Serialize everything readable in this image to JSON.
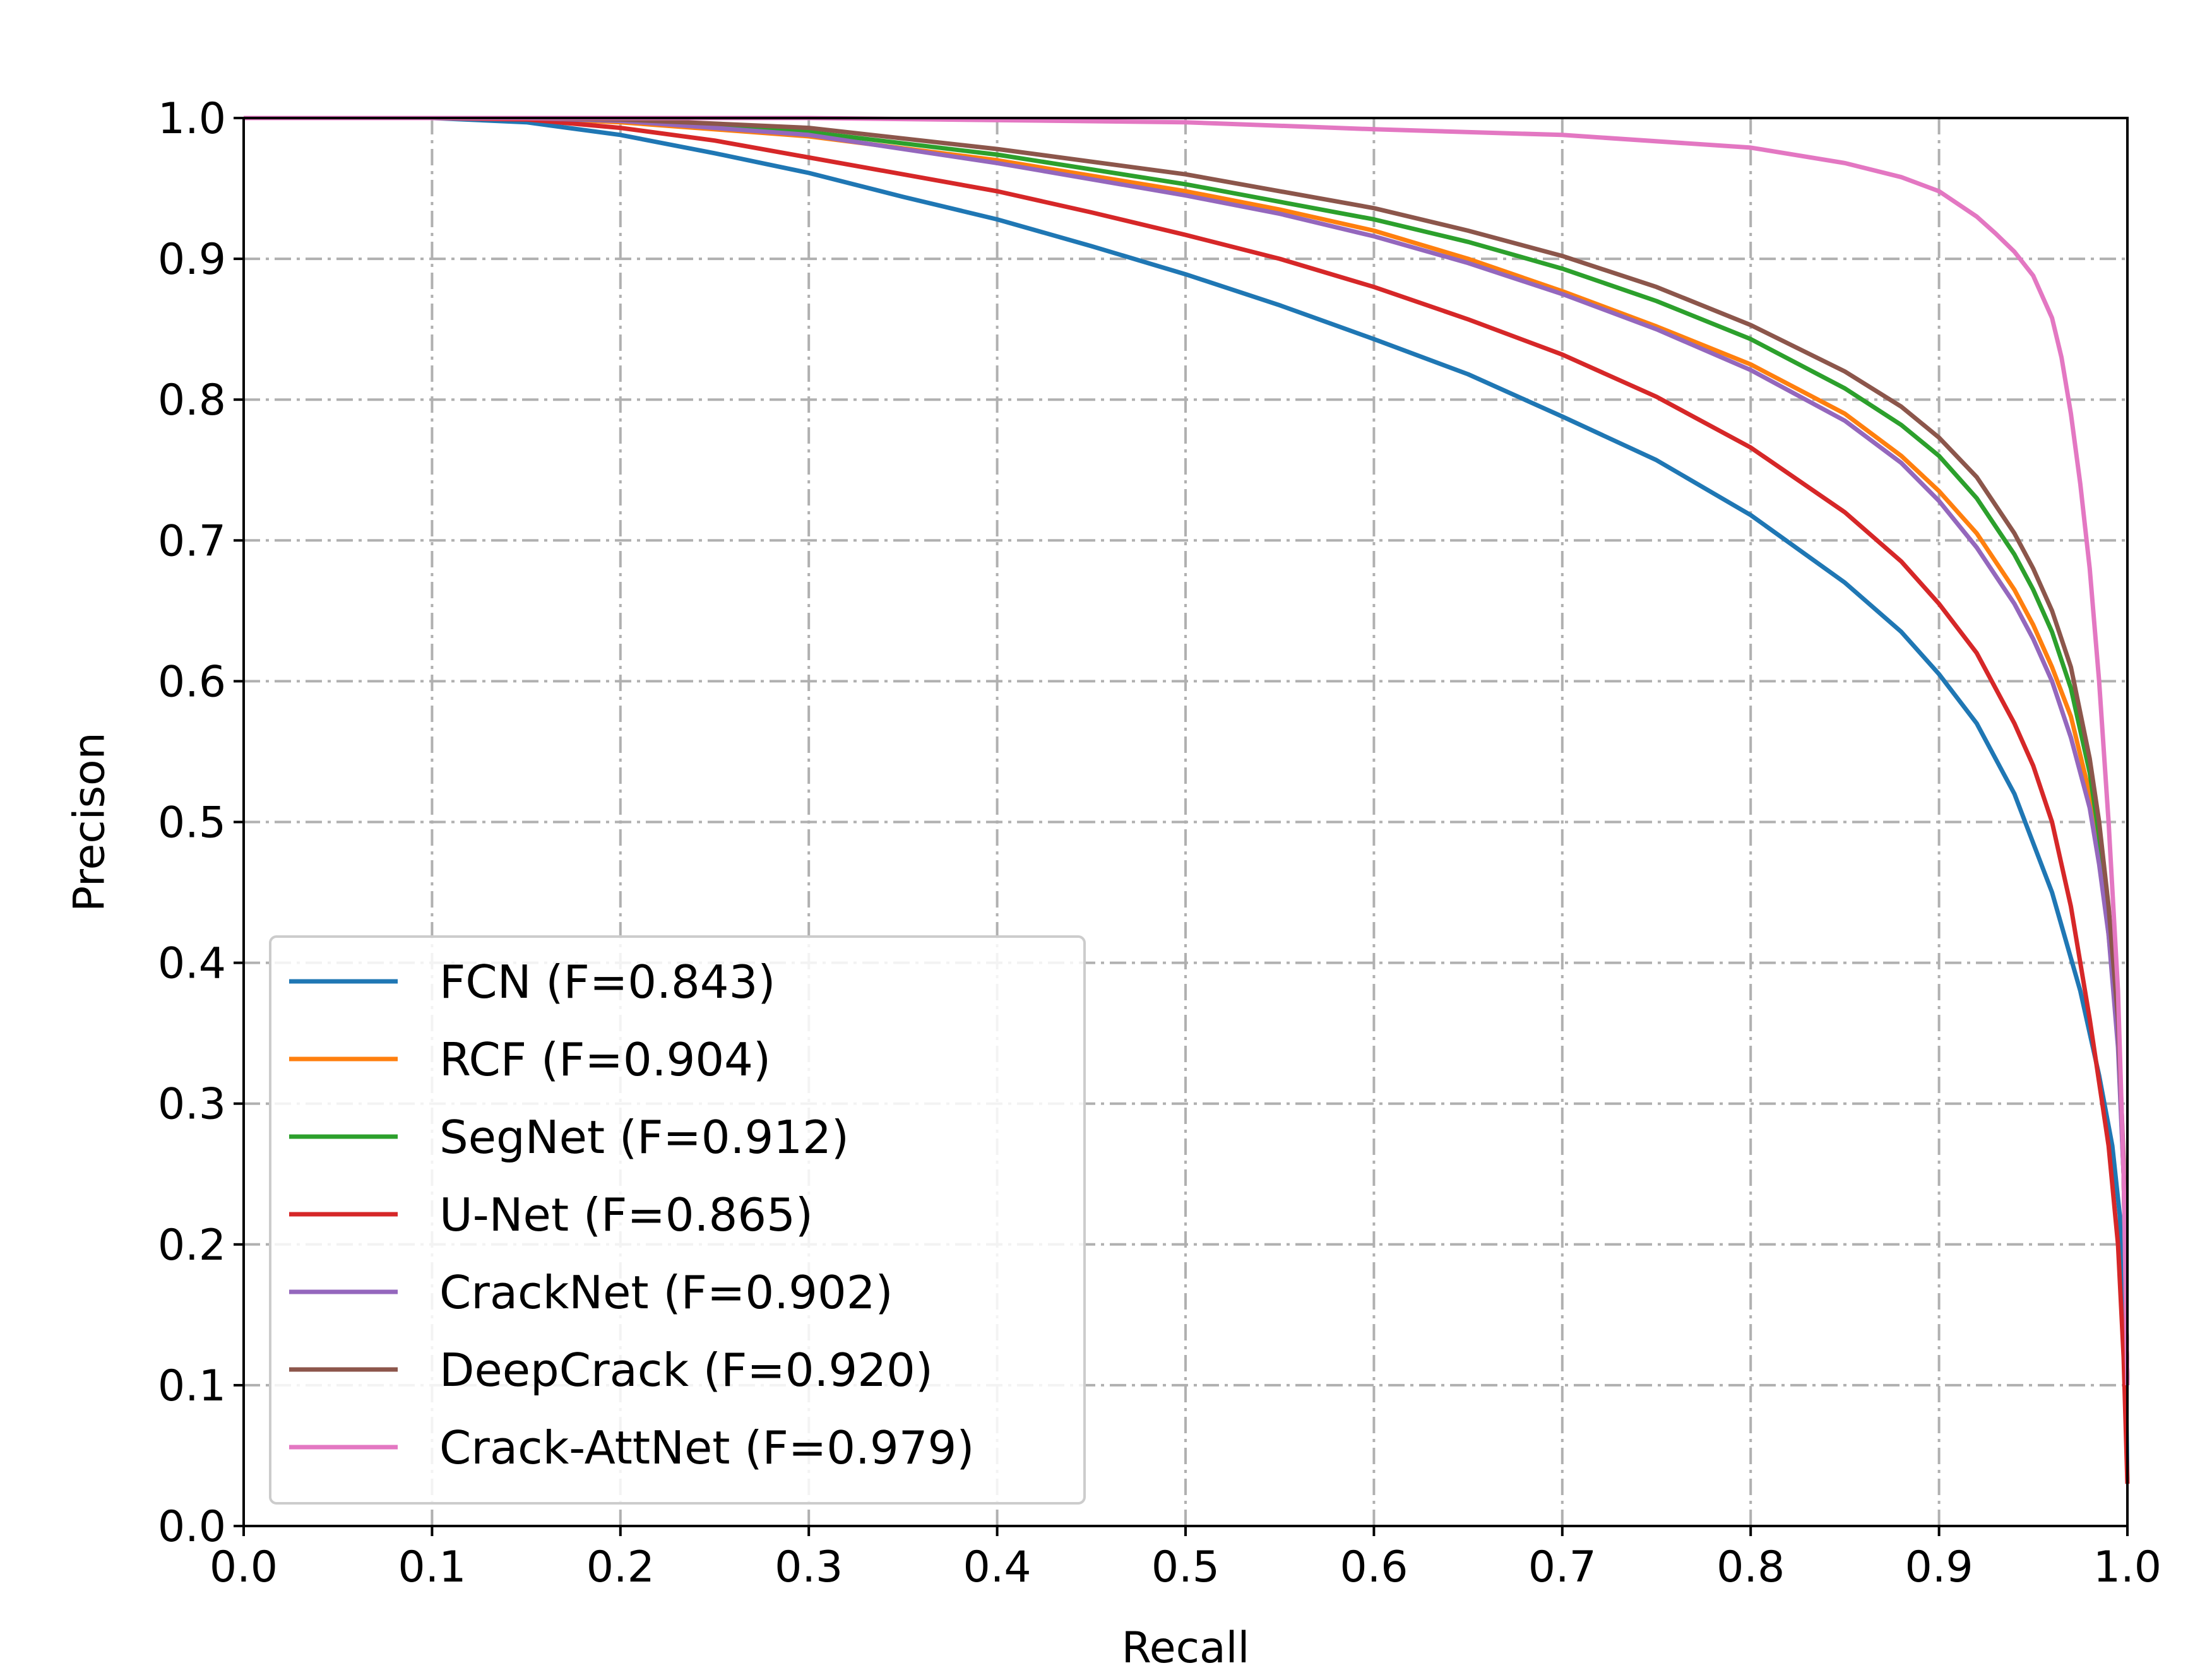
{
  "chart_data": {
    "type": "line",
    "title": "",
    "xlabel": "Recall",
    "ylabel": "Precison",
    "xlim": [
      0.0,
      1.0
    ],
    "ylim": [
      0.0,
      1.0
    ],
    "x_ticks": [
      "0.0",
      "0.1",
      "0.2",
      "0.3",
      "0.4",
      "0.5",
      "0.6",
      "0.7",
      "0.8",
      "0.9",
      "1.0"
    ],
    "y_ticks": [
      "0.0",
      "0.1",
      "0.2",
      "0.3",
      "0.4",
      "0.5",
      "0.6",
      "0.7",
      "0.8",
      "0.9",
      "1.0"
    ],
    "grid": true,
    "legend_position": "lower-left",
    "series": [
      {
        "name": "FCN (F=0.843)",
        "color": "#1f77b4",
        "points": [
          [
            0,
            1.0
          ],
          [
            0.1,
            1.0
          ],
          [
            0.15,
            0.997
          ],
          [
            0.2,
            0.988
          ],
          [
            0.25,
            0.975
          ],
          [
            0.3,
            0.961
          ],
          [
            0.35,
            0.944
          ],
          [
            0.4,
            0.928
          ],
          [
            0.45,
            0.909
          ],
          [
            0.5,
            0.889
          ],
          [
            0.55,
            0.867
          ],
          [
            0.6,
            0.843
          ],
          [
            0.65,
            0.818
          ],
          [
            0.7,
            0.788
          ],
          [
            0.75,
            0.757
          ],
          [
            0.8,
            0.718
          ],
          [
            0.85,
            0.67
          ],
          [
            0.88,
            0.635
          ],
          [
            0.9,
            0.605
          ],
          [
            0.92,
            0.57
          ],
          [
            0.94,
            0.52
          ],
          [
            0.96,
            0.45
          ],
          [
            0.975,
            0.38
          ],
          [
            0.985,
            0.32
          ],
          [
            0.992,
            0.27
          ],
          [
            0.996,
            0.22
          ],
          [
            0.999,
            0.12
          ],
          [
            1.0,
            0.03
          ]
        ]
      },
      {
        "name": "RCF (F=0.904)",
        "color": "#ff7f0e",
        "points": [
          [
            0,
            1.0
          ],
          [
            0.15,
            1.0
          ],
          [
            0.2,
            0.997
          ],
          [
            0.3,
            0.987
          ],
          [
            0.4,
            0.97
          ],
          [
            0.5,
            0.948
          ],
          [
            0.55,
            0.935
          ],
          [
            0.6,
            0.92
          ],
          [
            0.65,
            0.9
          ],
          [
            0.7,
            0.877
          ],
          [
            0.75,
            0.852
          ],
          [
            0.8,
            0.825
          ],
          [
            0.85,
            0.79
          ],
          [
            0.88,
            0.76
          ],
          [
            0.9,
            0.735
          ],
          [
            0.92,
            0.705
          ],
          [
            0.94,
            0.665
          ],
          [
            0.95,
            0.64
          ],
          [
            0.96,
            0.61
          ],
          [
            0.97,
            0.575
          ],
          [
            0.98,
            0.52
          ],
          [
            0.985,
            0.48
          ],
          [
            0.99,
            0.42
          ],
          [
            0.995,
            0.35
          ],
          [
            0.998,
            0.25
          ],
          [
            1.0,
            0.1
          ]
        ]
      },
      {
        "name": "SegNet (F=0.912)",
        "color": "#2ca02c",
        "points": [
          [
            0,
            1.0
          ],
          [
            0.15,
            1.0
          ],
          [
            0.2,
            0.998
          ],
          [
            0.3,
            0.99
          ],
          [
            0.4,
            0.974
          ],
          [
            0.5,
            0.953
          ],
          [
            0.6,
            0.928
          ],
          [
            0.65,
            0.912
          ],
          [
            0.7,
            0.893
          ],
          [
            0.75,
            0.87
          ],
          [
            0.8,
            0.843
          ],
          [
            0.85,
            0.808
          ],
          [
            0.88,
            0.782
          ],
          [
            0.9,
            0.76
          ],
          [
            0.92,
            0.73
          ],
          [
            0.94,
            0.69
          ],
          [
            0.95,
            0.665
          ],
          [
            0.96,
            0.635
          ],
          [
            0.97,
            0.595
          ],
          [
            0.98,
            0.535
          ],
          [
            0.985,
            0.49
          ],
          [
            0.99,
            0.43
          ],
          [
            0.995,
            0.35
          ],
          [
            0.998,
            0.25
          ],
          [
            1.0,
            0.1
          ]
        ]
      },
      {
        "name": "U-Net (F=0.865)",
        "color": "#d62728",
        "points": [
          [
            0,
            1.0
          ],
          [
            0.1,
            1.0
          ],
          [
            0.15,
            0.999
          ],
          [
            0.2,
            0.993
          ],
          [
            0.25,
            0.984
          ],
          [
            0.3,
            0.972
          ],
          [
            0.35,
            0.96
          ],
          [
            0.4,
            0.948
          ],
          [
            0.45,
            0.933
          ],
          [
            0.5,
            0.917
          ],
          [
            0.55,
            0.9
          ],
          [
            0.6,
            0.88
          ],
          [
            0.65,
            0.857
          ],
          [
            0.7,
            0.832
          ],
          [
            0.75,
            0.802
          ],
          [
            0.8,
            0.766
          ],
          [
            0.85,
            0.72
          ],
          [
            0.88,
            0.685
          ],
          [
            0.9,
            0.655
          ],
          [
            0.92,
            0.62
          ],
          [
            0.94,
            0.57
          ],
          [
            0.95,
            0.54
          ],
          [
            0.96,
            0.5
          ],
          [
            0.97,
            0.44
          ],
          [
            0.98,
            0.36
          ],
          [
            0.99,
            0.27
          ],
          [
            0.995,
            0.2
          ],
          [
            0.998,
            0.12
          ],
          [
            1.0,
            0.03
          ]
        ]
      },
      {
        "name": "CrackNet (F=0.902)",
        "color": "#9467bd",
        "points": [
          [
            0,
            1.0
          ],
          [
            0.15,
            1.0
          ],
          [
            0.2,
            0.998
          ],
          [
            0.3,
            0.988
          ],
          [
            0.4,
            0.968
          ],
          [
            0.5,
            0.945
          ],
          [
            0.55,
            0.932
          ],
          [
            0.6,
            0.916
          ],
          [
            0.65,
            0.897
          ],
          [
            0.7,
            0.875
          ],
          [
            0.75,
            0.85
          ],
          [
            0.8,
            0.821
          ],
          [
            0.85,
            0.785
          ],
          [
            0.88,
            0.755
          ],
          [
            0.9,
            0.728
          ],
          [
            0.92,
            0.695
          ],
          [
            0.94,
            0.655
          ],
          [
            0.95,
            0.63
          ],
          [
            0.96,
            0.6
          ],
          [
            0.97,
            0.56
          ],
          [
            0.98,
            0.51
          ],
          [
            0.985,
            0.47
          ],
          [
            0.99,
            0.42
          ],
          [
            0.995,
            0.34
          ],
          [
            0.998,
            0.25
          ],
          [
            1.0,
            0.1
          ]
        ]
      },
      {
        "name": "DeepCrack (F=0.920)",
        "color": "#8c564b",
        "points": [
          [
            0,
            1.0
          ],
          [
            0.15,
            1.0
          ],
          [
            0.2,
            0.999
          ],
          [
            0.3,
            0.993
          ],
          [
            0.4,
            0.978
          ],
          [
            0.5,
            0.96
          ],
          [
            0.6,
            0.936
          ],
          [
            0.65,
            0.92
          ],
          [
            0.7,
            0.902
          ],
          [
            0.75,
            0.88
          ],
          [
            0.8,
            0.853
          ],
          [
            0.85,
            0.82
          ],
          [
            0.88,
            0.795
          ],
          [
            0.9,
            0.773
          ],
          [
            0.92,
            0.745
          ],
          [
            0.94,
            0.705
          ],
          [
            0.95,
            0.68
          ],
          [
            0.96,
            0.65
          ],
          [
            0.97,
            0.61
          ],
          [
            0.98,
            0.545
          ],
          [
            0.985,
            0.5
          ],
          [
            0.99,
            0.44
          ],
          [
            0.995,
            0.36
          ],
          [
            0.998,
            0.26
          ],
          [
            1.0,
            0.1
          ]
        ]
      },
      {
        "name": "Crack-AttNet (F=0.979)",
        "color": "#e377c2",
        "points": [
          [
            0,
            1.0
          ],
          [
            0.3,
            1.0
          ],
          [
            0.5,
            0.997
          ],
          [
            0.6,
            0.992
          ],
          [
            0.7,
            0.988
          ],
          [
            0.8,
            0.979
          ],
          [
            0.85,
            0.968
          ],
          [
            0.88,
            0.958
          ],
          [
            0.9,
            0.948
          ],
          [
            0.92,
            0.93
          ],
          [
            0.93,
            0.918
          ],
          [
            0.94,
            0.905
          ],
          [
            0.95,
            0.888
          ],
          [
            0.96,
            0.858
          ],
          [
            0.965,
            0.83
          ],
          [
            0.97,
            0.79
          ],
          [
            0.975,
            0.74
          ],
          [
            0.98,
            0.68
          ],
          [
            0.985,
            0.6
          ],
          [
            0.99,
            0.5
          ],
          [
            0.995,
            0.38
          ],
          [
            0.998,
            0.25
          ],
          [
            1.0,
            0.1
          ]
        ]
      }
    ]
  }
}
